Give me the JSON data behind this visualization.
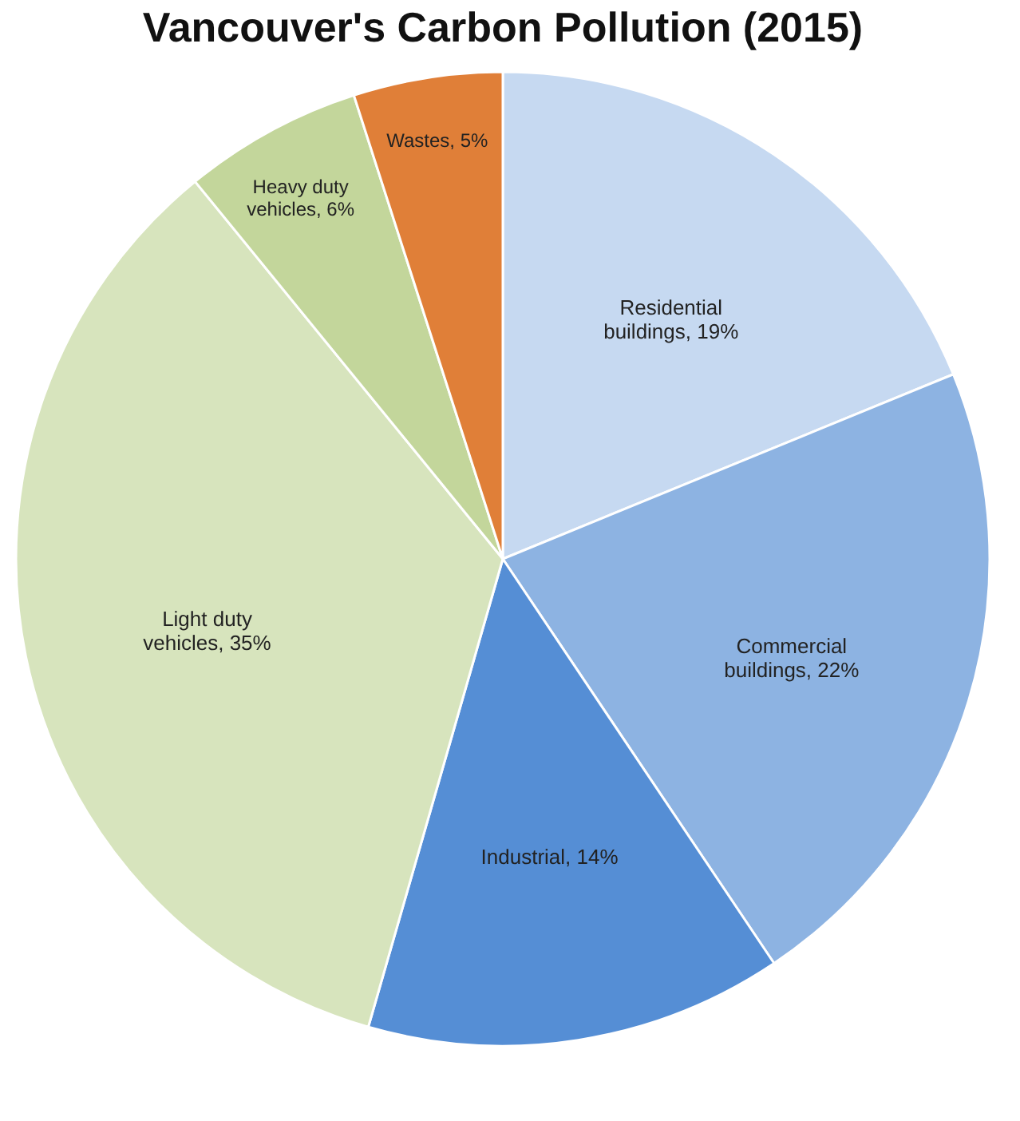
{
  "chart_data": {
    "type": "pie",
    "title": "Vancouver's Carbon Pollution (2015)",
    "categories": [
      "Residential buildings",
      "Commercial buildings",
      "Industrial",
      "Light duty vehicles",
      "Heavy duty vehicles",
      "Wastes"
    ],
    "values": [
      19,
      22,
      14,
      35,
      6,
      5
    ],
    "value_labels": [
      "19%",
      "22%",
      "14%",
      "35%",
      "6%",
      "5%"
    ],
    "colors": [
      "#c6d9f1",
      "#8db3e2",
      "#558ed5",
      "#d7e4bd",
      "#c3d69b",
      "#e07f38"
    ],
    "legend": false
  }
}
